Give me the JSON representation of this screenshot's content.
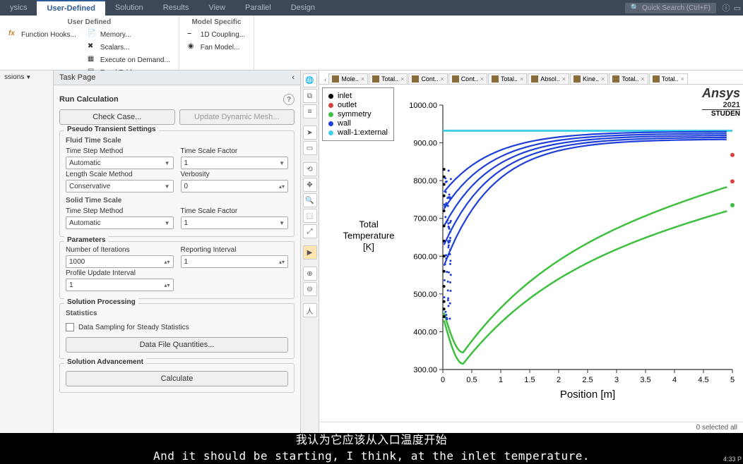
{
  "topmenu": {
    "tabs": [
      "ysics",
      "User-Defined",
      "Solution",
      "Results",
      "View",
      "Parallel",
      "Design"
    ],
    "active_index": 1,
    "search_placeholder": "Quick Search (Ctrl+F)"
  },
  "ribbon": {
    "groups": [
      {
        "title": "User Defined",
        "cols": [
          [
            {
              "icon": "fx",
              "label": "Function Hooks..."
            }
          ],
          [
            {
              "icon": "mem",
              "label": "Memory..."
            },
            {
              "icon": "sc",
              "label": "Scalars..."
            },
            {
              "icon": "ex",
              "label": "Execute on Demand..."
            },
            {
              "icon": "rt",
              "label": "Read Table..."
            }
          ]
        ]
      },
      {
        "title": "Model Specific",
        "cols": [
          [
            {
              "icon": "1d",
              "label": "1D Coupling..."
            },
            {
              "icon": "fan",
              "label": "Fan Model..."
            }
          ]
        ]
      }
    ]
  },
  "leftdock": {
    "item": "ssions"
  },
  "taskpage": {
    "header": "Task Page",
    "title": "Run Calculation",
    "check_case": "Check Case...",
    "update_mesh": "Update Dynamic Mesh...",
    "pseudo": "Pseudo Transient Settings",
    "fluid": "Fluid Time Scale",
    "solid": "Solid Time Scale",
    "time_step_method": "Time Step Method",
    "automatic": "Automatic",
    "time_scale_factor": "Time Scale Factor",
    "tsf_val": "1",
    "length_scale_method": "Length Scale Method",
    "conservative": "Conservative",
    "verbosity": "Verbosity",
    "verbosity_val": "0",
    "parameters": "Parameters",
    "num_iter": "Number of Iterations",
    "num_iter_val": "1000",
    "report_int": "Reporting Interval",
    "report_int_val": "1",
    "profile_upd": "Profile Update Interval",
    "profile_upd_val": "1",
    "sol_proc": "Solution Processing",
    "statistics": "Statistics",
    "checkbox": "Data Sampling for Steady Statistics",
    "data_file_q": "Data File Quantities...",
    "sol_adv": "Solution Advancement",
    "calculate": "Calculate"
  },
  "doctabs": [
    "Mole..",
    "Total..",
    "Cont..",
    "Cont..",
    "Total..",
    "Absol..",
    "Kine..",
    "Total..",
    "Total.."
  ],
  "chart": {
    "legend": [
      {
        "label": "inlet",
        "color": "#000000"
      },
      {
        "label": "outlet",
        "color": "#d9423a"
      },
      {
        "label": "symmetry",
        "color": "#3fbf3f"
      },
      {
        "label": "wall",
        "color": "#1f3fd9"
      },
      {
        "label": "wall-1:external",
        "color": "#3fd0e8"
      }
    ],
    "ylabel": "Total\nTemperature\n[K]",
    "xlabel": "Position [m]",
    "xlim": [
      0,
      5
    ],
    "xticks": [
      0,
      0.5,
      1,
      1.5,
      2,
      2.5,
      3,
      3.5,
      4,
      4.5,
      5
    ],
    "ylim": [
      300,
      1000
    ],
    "yticks": [
      300,
      400,
      500,
      600,
      700,
      800,
      900,
      1000
    ],
    "ytick_labels": [
      "300.00",
      "400.00",
      "500.00",
      "600.00",
      "700.00",
      "800.00",
      "900.00",
      "1000.00"
    ],
    "background": "#ffffff",
    "axis_color": "#333333",
    "tick_fontsize": 11,
    "label_fontsize": 13,
    "series": {
      "external_line": {
        "color": "#3fd0e8",
        "width": 3,
        "y": 932,
        "x": [
          0,
          5
        ]
      },
      "wall_curves": {
        "color": "#1f3fd9",
        "width": 2.2,
        "count": 5,
        "start_y": [
          770,
          725,
          680,
          630,
          575
        ],
        "end_y": [
          930,
          925,
          920,
          915,
          910
        ]
      },
      "symmetry_curves": {
        "color": "#3fbf3f",
        "width": 2.5,
        "count": 2,
        "start": [
          {
            "x": 0,
            "y": 450
          },
          {
            "x": 0,
            "y": 430
          }
        ],
        "dip": [
          {
            "x": 0.35,
            "y": 345
          },
          {
            "x": 0.35,
            "y": 315
          }
        ],
        "end": [
          {
            "x": 5,
            "y": 800
          },
          {
            "x": 5,
            "y": 735
          }
        ]
      },
      "inlet_cluster": {
        "color": "#000000",
        "r": 2,
        "x": 0.02,
        "ys": [
          440,
          460,
          480,
          520,
          560,
          600,
          640,
          680,
          720,
          760,
          790,
          810,
          830
        ]
      },
      "scatter_points": [
        {
          "color": "#d9423a",
          "x": 5.0,
          "y": 868,
          "r": 3
        },
        {
          "color": "#d9423a",
          "x": 5.0,
          "y": 798,
          "r": 3
        },
        {
          "color": "#3fbf3f",
          "x": 5.0,
          "y": 735,
          "r": 3
        }
      ]
    },
    "brand": {
      "name": "Ansys",
      "year": "2021",
      "edition": "STUDEN"
    }
  },
  "status": "0 selected  all",
  "subtitles": {
    "cn": "我认为它应该从入口温度开始",
    "en": "And it should be starting, I think, at the inlet temperature."
  },
  "clock": "4:33 P"
}
